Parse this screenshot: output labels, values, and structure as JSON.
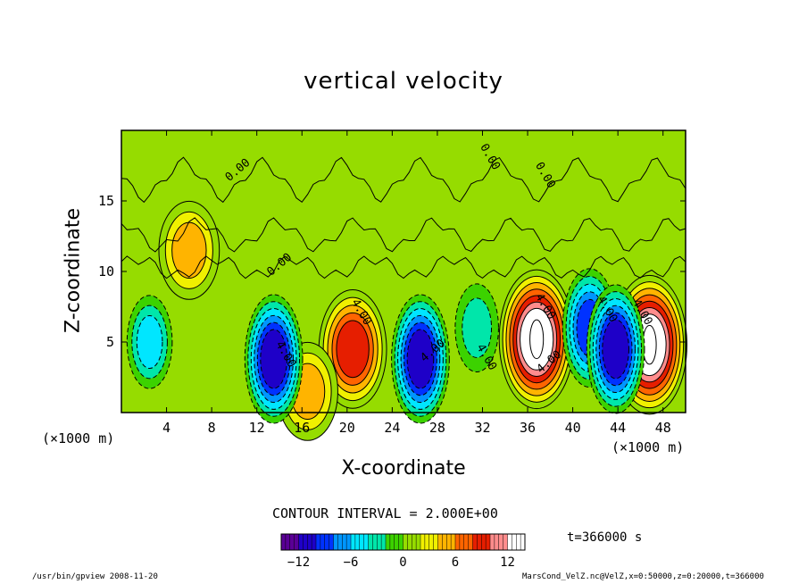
{
  "chart_data": {
    "type": "heatmap",
    "title": "vertical velocity",
    "xlabel": "X-coordinate",
    "ylabel": "Z-coordinate",
    "x_unit": "(×1000 m)",
    "x_ticks": [
      4,
      8,
      12,
      16,
      20,
      24,
      28,
      32,
      36,
      40,
      44,
      48
    ],
    "y_ticks": [
      5,
      10,
      15
    ],
    "xlim": [
      0,
      50
    ],
    "ylim": [
      0,
      20
    ],
    "contour_interval_text": "CONTOUR INTERVAL = 2.000E+00",
    "contour_labels": [
      "0.00",
      "0.00",
      "0.00",
      "0.00",
      "4.00",
      "4.00",
      "4.00",
      "4.00",
      "4.00",
      "4.00",
      "4.00",
      "4.00"
    ],
    "colorbar": {
      "ticks": [
        -12,
        -6,
        0,
        6,
        12
      ],
      "range": [
        -14,
        14
      ],
      "colors": [
        "#5a0096",
        "#1e00c8",
        "#0032ff",
        "#0096ff",
        "#00e6ff",
        "#00e6aa",
        "#3cd200",
        "#96dc00",
        "#f0f000",
        "#ffb400",
        "#ff6400",
        "#e61e00",
        "#ff8c8c",
        "#ffffff"
      ]
    },
    "features": [
      {
        "kind": "updraft",
        "x": 20.5,
        "z": 4.5,
        "w": 10
      },
      {
        "kind": "updraft",
        "x": 36.8,
        "z": 5.2,
        "w": 14
      },
      {
        "kind": "updraft",
        "x": 46.8,
        "z": 4.8,
        "w": 14
      },
      {
        "kind": "updraft",
        "x": 6.0,
        "z": 11.5,
        "w": 6
      },
      {
        "kind": "updraft",
        "x": 16.5,
        "z": 1.5,
        "w": 6
      },
      {
        "kind": "downdraft",
        "x": 13.5,
        "z": 3.8,
        "w": -12
      },
      {
        "kind": "downdraft",
        "x": 26.5,
        "z": 3.8,
        "w": -12
      },
      {
        "kind": "downdraft",
        "x": 41.5,
        "z": 6.0,
        "w": -10
      },
      {
        "kind": "downdraft",
        "x": 43.8,
        "z": 4.5,
        "w": -12
      },
      {
        "kind": "downdraft",
        "x": 2.5,
        "z": 5.0,
        "w": -5
      },
      {
        "kind": "downdraft",
        "x": 31.5,
        "z": 6.0,
        "w": -4
      }
    ],
    "grid": false
  },
  "labels": {
    "time": "t=366000 s",
    "footer_left": "/usr/bin/gpview  2008-11-20",
    "footer_right": "MarsCond_VelZ.nc@VelZ,x=0:50000,z=0:20000,t=366000"
  }
}
